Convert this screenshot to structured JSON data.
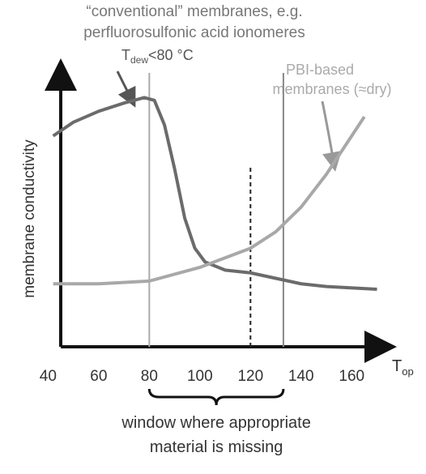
{
  "chart_data": {
    "type": "line",
    "title": [
      "“conventional” membranes, e.g.",
      "perfluorosulfonic acid ionomeres"
    ],
    "title_condition": {
      "main": "T",
      "sub": "dew",
      "rest": "<80 °C"
    },
    "pbi_label": [
      "PBI-based",
      "membranes (≈dry)"
    ],
    "ylabel": "membrane conductivity",
    "xlabel": {
      "main": "T",
      "sub": "op"
    },
    "xlim": [
      45,
      174
    ],
    "ylim": [
      0,
      100
    ],
    "xticks": [
      40,
      60,
      80,
      100,
      120,
      140,
      160
    ],
    "series": [
      {
        "name": "conventional",
        "color": "#6b6b6b",
        "x": [
          42,
          50,
          60,
          70,
          78,
          82,
          86,
          90,
          94,
          98,
          102,
          110,
          120,
          130,
          140,
          150,
          170
        ],
        "values": [
          77,
          82,
          86,
          89,
          91,
          90,
          81,
          65,
          47,
          36,
          31,
          28,
          27,
          25,
          23,
          22,
          21
        ]
      },
      {
        "name": "PBI-based",
        "color": "#a8a8a8",
        "x": [
          42,
          60,
          80,
          100,
          120,
          130,
          140,
          150,
          160,
          165
        ],
        "values": [
          23,
          23,
          24,
          29,
          36,
          42,
          51,
          63,
          77,
          84
        ]
      }
    ],
    "reference_lines": [
      {
        "x": 80,
        "color": "#aaaaaa",
        "dash": false
      },
      {
        "x": 120,
        "color": "#222222",
        "dash": true
      },
      {
        "x": 133,
        "color": "#888888",
        "dash": false
      }
    ],
    "window": {
      "x": [
        80,
        133
      ],
      "label": [
        "window where appropriate",
        "material is missing"
      ]
    }
  }
}
